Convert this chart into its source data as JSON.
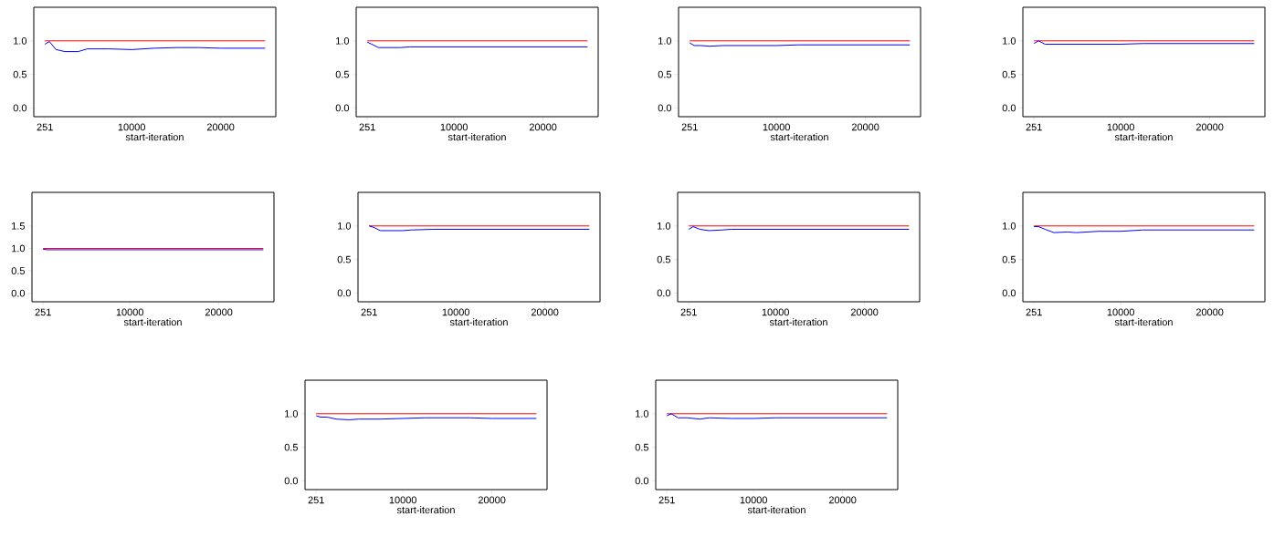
{
  "chart_data": [
    {
      "type": "line",
      "xlabel": "start-iteration",
      "x": [
        251,
        750,
        1500,
        2500,
        4000,
        5000,
        7500,
        10000,
        12500,
        15000,
        17500,
        20000,
        22500,
        25000
      ],
      "series": [
        {
          "color": "#ff0000",
          "values": [
            1.0,
            1.0,
            1.0,
            1.0,
            1.0,
            1.0,
            1.0,
            1.0,
            1.0,
            1.0,
            1.0,
            1.0,
            1.0,
            1.0
          ]
        },
        {
          "color": "#0000ff",
          "values": [
            0.95,
            0.99,
            0.87,
            0.84,
            0.84,
            0.88,
            0.88,
            0.87,
            0.89,
            0.9,
            0.9,
            0.89,
            0.89,
            0.89
          ]
        }
      ],
      "xlim": [
        -1000,
        26200
      ],
      "ylim": [
        -0.13,
        1.5
      ],
      "xticks": [
        251,
        10000,
        20000
      ],
      "yticks": [
        {
          "value": 0,
          "label": "0.0"
        },
        {
          "value": 0.5,
          "label": "0.5"
        },
        {
          "value": 1,
          "label": "1.0"
        }
      ]
    },
    {
      "type": "line",
      "xlabel": "start-iteration",
      "x": [
        251,
        750,
        1500,
        2500,
        4000,
        5000,
        7500,
        10000,
        12500,
        15000,
        17500,
        20000,
        22500,
        25000
      ],
      "series": [
        {
          "color": "#ff0000",
          "values": [
            1.0,
            1.0,
            1.0,
            1.0,
            1.0,
            1.0,
            1.0,
            1.0,
            1.0,
            1.0,
            1.0,
            1.0,
            1.0,
            1.0
          ]
        },
        {
          "color": "#0000ff",
          "values": [
            0.98,
            0.95,
            0.9,
            0.9,
            0.9,
            0.91,
            0.91,
            0.91,
            0.91,
            0.91,
            0.91,
            0.91,
            0.91,
            0.91
          ]
        }
      ],
      "xlim": [
        -1000,
        26200
      ],
      "ylim": [
        -0.13,
        1.5
      ],
      "xticks": [
        251,
        10000,
        20000
      ],
      "yticks": [
        {
          "value": 0,
          "label": "0.0"
        },
        {
          "value": 0.5,
          "label": "0.5"
        },
        {
          "value": 1,
          "label": "1.0"
        }
      ]
    },
    {
      "type": "line",
      "xlabel": "start-iteration",
      "x": [
        251,
        750,
        1500,
        2500,
        4000,
        5000,
        7500,
        10000,
        12500,
        15000,
        17500,
        20000,
        22500,
        25000
      ],
      "series": [
        {
          "color": "#ff0000",
          "values": [
            1.0,
            1.0,
            1.0,
            1.0,
            1.0,
            1.0,
            1.0,
            1.0,
            1.0,
            1.0,
            1.0,
            1.0,
            1.0,
            1.0
          ]
        },
        {
          "color": "#0000ff",
          "values": [
            0.97,
            0.93,
            0.93,
            0.92,
            0.93,
            0.93,
            0.93,
            0.93,
            0.94,
            0.94,
            0.94,
            0.94,
            0.94,
            0.94
          ]
        }
      ],
      "xlim": [
        -1000,
        26200
      ],
      "ylim": [
        -0.13,
        1.5
      ],
      "xticks": [
        251,
        10000,
        20000
      ],
      "yticks": [
        {
          "value": 0,
          "label": "0.0"
        },
        {
          "value": 0.5,
          "label": "0.5"
        },
        {
          "value": 1,
          "label": "1.0"
        }
      ]
    },
    {
      "type": "line",
      "xlabel": "start-iteration",
      "x": [
        251,
        750,
        1500,
        2500,
        4000,
        5000,
        7500,
        10000,
        12500,
        15000,
        17500,
        20000,
        22500,
        25000
      ],
      "series": [
        {
          "color": "#ff0000",
          "values": [
            1.0,
            1.0,
            1.0,
            1.0,
            1.0,
            1.0,
            1.0,
            1.0,
            1.0,
            1.0,
            1.0,
            1.0,
            1.0,
            1.0
          ]
        },
        {
          "color": "#0000ff",
          "values": [
            0.96,
            1.0,
            0.95,
            0.95,
            0.95,
            0.95,
            0.95,
            0.95,
            0.96,
            0.96,
            0.96,
            0.96,
            0.96,
            0.96
          ]
        }
      ],
      "xlim": [
        -1000,
        26200
      ],
      "ylim": [
        -0.13,
        1.5
      ],
      "xticks": [
        251,
        10000,
        20000
      ],
      "yticks": [
        {
          "value": 0,
          "label": "0.0"
        },
        {
          "value": 0.5,
          "label": "0.5"
        },
        {
          "value": 1,
          "label": "1.0"
        }
      ]
    },
    {
      "type": "line",
      "xlabel": "start-iteration",
      "x": [
        251,
        750,
        1500,
        2500,
        4000,
        5000,
        7500,
        10000,
        12500,
        15000,
        17500,
        20000,
        22500,
        25000
      ],
      "series": [
        {
          "color": "#ff0000",
          "values": [
            1.0,
            1.0,
            1.0,
            1.0,
            1.0,
            1.0,
            1.0,
            1.0,
            1.0,
            1.0,
            1.0,
            1.0,
            1.0,
            1.0
          ]
        },
        {
          "color": "#0000ff",
          "values": [
            0.98,
            0.97,
            0.97,
            0.97,
            0.97,
            0.97,
            0.97,
            0.97,
            0.97,
            0.97,
            0.97,
            0.97,
            0.97,
            0.97
          ]
        }
      ],
      "xlim": [
        -1000,
        26200
      ],
      "ylim": [
        -0.19,
        2.25
      ],
      "xticks": [
        251,
        10000,
        20000
      ],
      "yticks": [
        {
          "value": 0,
          "label": "0.0"
        },
        {
          "value": 0.5,
          "label": "0.5"
        },
        {
          "value": 1,
          "label": "1.0"
        },
        {
          "value": 1.5,
          "label": "1.5"
        }
      ]
    },
    {
      "type": "line",
      "xlabel": "start-iteration",
      "x": [
        251,
        750,
        1500,
        2500,
        4000,
        5000,
        7500,
        10000,
        12500,
        15000,
        17500,
        20000,
        22500,
        25000
      ],
      "series": [
        {
          "color": "#ff0000",
          "values": [
            1.0,
            1.0,
            1.0,
            1.0,
            1.0,
            1.0,
            1.0,
            1.0,
            1.0,
            1.0,
            1.0,
            1.0,
            1.0,
            1.0
          ]
        },
        {
          "color": "#0000ff",
          "values": [
            1.0,
            0.98,
            0.93,
            0.93,
            0.93,
            0.94,
            0.95,
            0.95,
            0.95,
            0.95,
            0.95,
            0.95,
            0.95,
            0.95
          ]
        }
      ],
      "xlim": [
        -1000,
        26200
      ],
      "ylim": [
        -0.13,
        1.5
      ],
      "xticks": [
        251,
        10000,
        20000
      ],
      "yticks": [
        {
          "value": 0,
          "label": "0.0"
        },
        {
          "value": 0.5,
          "label": "0.5"
        },
        {
          "value": 1,
          "label": "1.0"
        }
      ]
    },
    {
      "type": "line",
      "xlabel": "start-iteration",
      "x": [
        251,
        750,
        1500,
        2500,
        4000,
        5000,
        7500,
        10000,
        12500,
        15000,
        17500,
        20000,
        22500,
        25000
      ],
      "series": [
        {
          "color": "#ff0000",
          "values": [
            1.0,
            1.0,
            1.0,
            1.0,
            1.0,
            1.0,
            1.0,
            1.0,
            1.0,
            1.0,
            1.0,
            1.0,
            1.0,
            1.0
          ]
        },
        {
          "color": "#0000ff",
          "values": [
            0.95,
            0.99,
            0.95,
            0.93,
            0.94,
            0.95,
            0.95,
            0.95,
            0.95,
            0.95,
            0.95,
            0.95,
            0.95,
            0.95
          ]
        }
      ],
      "xlim": [
        -1000,
        26200
      ],
      "ylim": [
        -0.13,
        1.5
      ],
      "xticks": [
        251,
        10000,
        20000
      ],
      "yticks": [
        {
          "value": 0,
          "label": "0.0"
        },
        {
          "value": 0.5,
          "label": "0.5"
        },
        {
          "value": 1,
          "label": "1.0"
        }
      ]
    },
    {
      "type": "line",
      "xlabel": "start-iteration",
      "x": [
        251,
        750,
        1500,
        2500,
        4000,
        5000,
        7500,
        10000,
        12500,
        15000,
        17500,
        20000,
        22500,
        25000
      ],
      "series": [
        {
          "color": "#ff0000",
          "values": [
            1.0,
            1.0,
            1.0,
            1.0,
            1.0,
            1.0,
            1.0,
            1.0,
            1.0,
            1.0,
            1.0,
            1.0,
            1.0,
            1.0
          ]
        },
        {
          "color": "#0000ff",
          "values": [
            0.99,
            0.99,
            0.95,
            0.9,
            0.91,
            0.9,
            0.92,
            0.92,
            0.94,
            0.94,
            0.94,
            0.94,
            0.94,
            0.94
          ]
        }
      ],
      "xlim": [
        -1000,
        26200
      ],
      "ylim": [
        -0.13,
        1.5
      ],
      "xticks": [
        251,
        10000,
        20000
      ],
      "yticks": [
        {
          "value": 0,
          "label": "0.0"
        },
        {
          "value": 0.5,
          "label": "0.5"
        },
        {
          "value": 1,
          "label": "1.0"
        }
      ]
    },
    {
      "type": "line",
      "xlabel": "start-iteration",
      "x": [
        251,
        750,
        1500,
        2500,
        4000,
        5000,
        7500,
        10000,
        12500,
        15000,
        17500,
        20000,
        22500,
        25000
      ],
      "series": [
        {
          "color": "#ff0000",
          "values": [
            1.0,
            1.0,
            1.0,
            1.0,
            1.0,
            1.0,
            1.0,
            1.0,
            1.0,
            1.0,
            1.0,
            1.0,
            1.0,
            1.0
          ]
        },
        {
          "color": "#0000ff",
          "values": [
            0.97,
            0.95,
            0.95,
            0.92,
            0.91,
            0.92,
            0.92,
            0.93,
            0.94,
            0.94,
            0.94,
            0.93,
            0.93,
            0.93
          ]
        }
      ],
      "xlim": [
        -1000,
        26200
      ],
      "ylim": [
        -0.13,
        1.5
      ],
      "xticks": [
        251,
        10000,
        20000
      ],
      "yticks": [
        {
          "value": 0,
          "label": "0.0"
        },
        {
          "value": 0.5,
          "label": "0.5"
        },
        {
          "value": 1,
          "label": "1.0"
        }
      ]
    },
    {
      "type": "line",
      "xlabel": "start-iteration",
      "x": [
        251,
        750,
        1500,
        2500,
        4000,
        5000,
        7500,
        10000,
        12500,
        15000,
        17500,
        20000,
        22500,
        25000
      ],
      "series": [
        {
          "color": "#ff0000",
          "values": [
            1.0,
            1.0,
            1.0,
            1.0,
            1.0,
            1.0,
            1.0,
            1.0,
            1.0,
            1.0,
            1.0,
            1.0,
            1.0,
            1.0
          ]
        },
        {
          "color": "#0000ff",
          "values": [
            0.97,
            1.0,
            0.94,
            0.94,
            0.92,
            0.94,
            0.93,
            0.93,
            0.94,
            0.94,
            0.94,
            0.94,
            0.94,
            0.94
          ]
        }
      ],
      "xlim": [
        -1000,
        26200
      ],
      "ylim": [
        -0.13,
        1.5
      ],
      "xticks": [
        251,
        10000,
        20000
      ],
      "yticks": [
        {
          "value": 0,
          "label": "0.0"
        },
        {
          "value": 0.5,
          "label": "0.5"
        },
        {
          "value": 1,
          "label": "1.0"
        }
      ]
    }
  ]
}
